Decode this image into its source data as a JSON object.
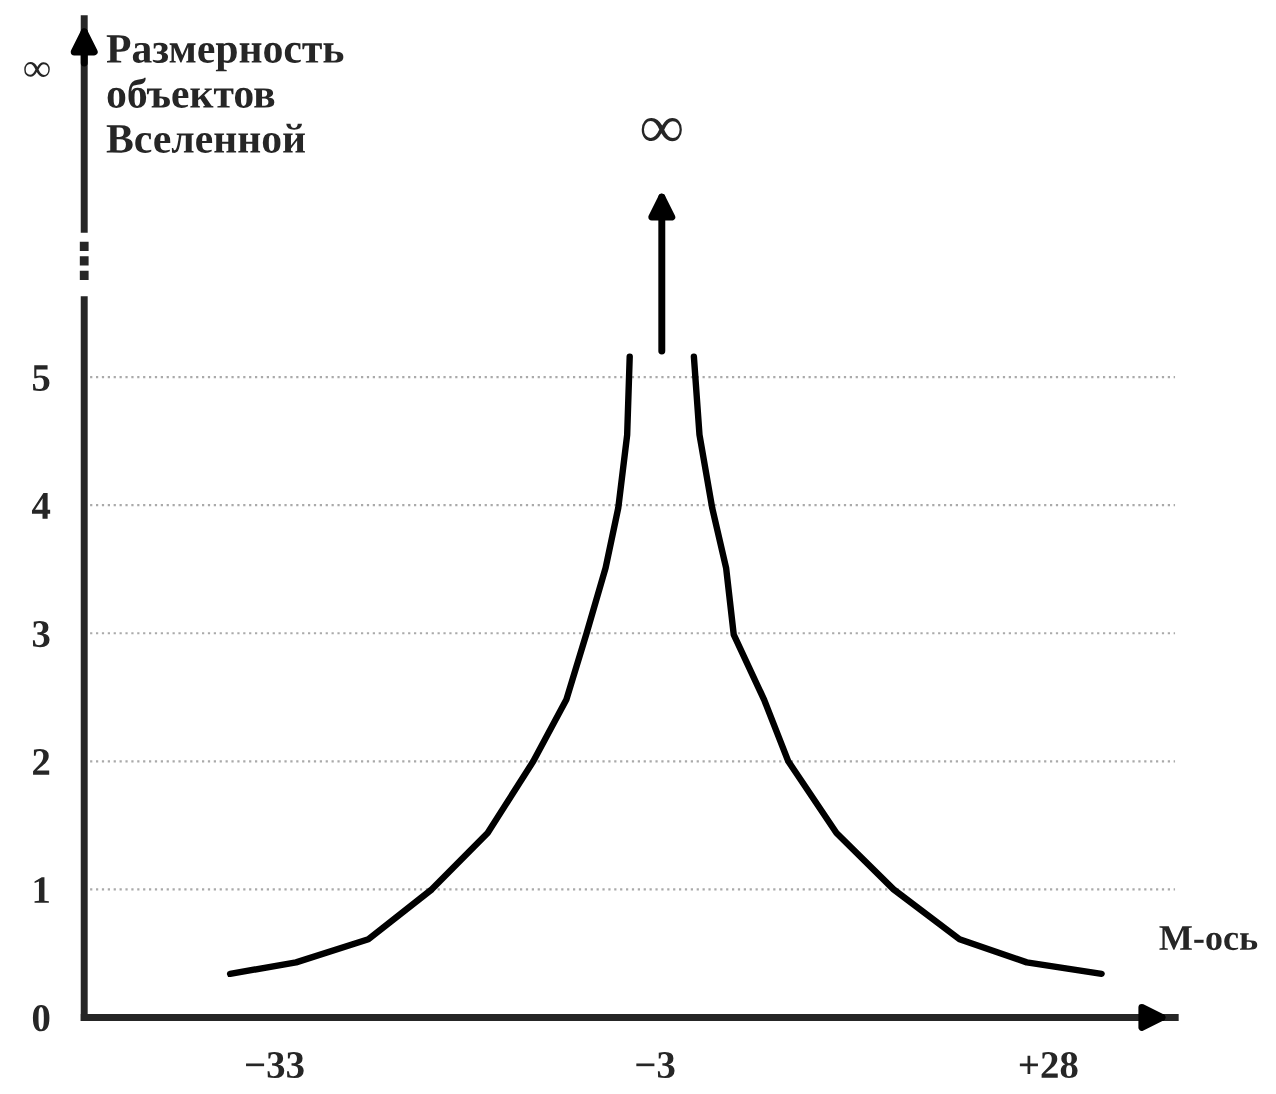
{
  "chart_data": {
    "type": "line",
    "ylabel": "Размерность\nобъектов\nВселенной",
    "xlabel": "М-ось",
    "series": [
      {
        "color": "#000000",
        "x": [
          -36.5,
          -31.3,
          -25.6,
          -20.6,
          -16.2,
          -12.6,
          -10.0,
          -8.4,
          -6.9,
          -5.9,
          -5.2,
          -5.0
        ],
        "values": [
          0.34,
          0.43,
          0.61,
          1.0,
          1.44,
          2.0,
          2.48,
          3.0,
          3.51,
          3.98,
          4.55,
          5.16
        ]
      },
      {
        "color": "#000000",
        "x": [
          0.06,
          0.5,
          1.5,
          2.6,
          3.2,
          5.6,
          7.5,
          11.3,
          15.8,
          21.0,
          26.3,
          32.2
        ],
        "values": [
          5.16,
          4.55,
          3.98,
          3.51,
          2.99,
          2.48,
          2.0,
          1.44,
          1.0,
          0.61,
          0.43,
          0.34
        ]
      }
    ],
    "annotations": [
      "∞",
      "⋮"
    ],
    "xlim": [
      -48,
      38
    ],
    "xticks": [
      {
        "value": -33,
        "label": "−33"
      },
      {
        "value": -3,
        "label": "−3"
      },
      {
        "value": 28,
        "label": "+28"
      }
    ],
    "ylim": [
      0,
      7.8
    ],
    "yticks": [
      0,
      1,
      2,
      3,
      4,
      5,
      {
        "value": 7.42,
        "label": "∞"
      }
    ],
    "grid": "y",
    "legend": false,
    "marker": "none",
    "line_style": "solid"
  }
}
